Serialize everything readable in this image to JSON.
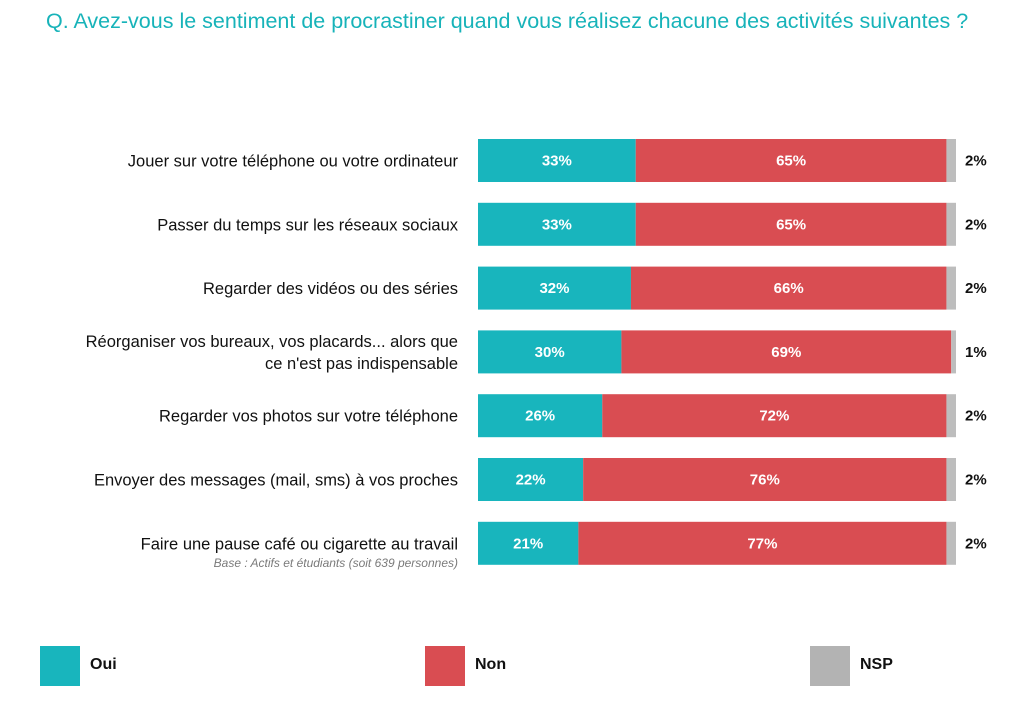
{
  "title": "Q. Avez-vous le sentiment de procrastiner quand vous réalisez chacune des activités suivantes ?",
  "base_note": "Base : Actifs et étudiants (soit 639 personnes)",
  "colors": {
    "oui": "#18b5bd",
    "non": "#d94d52",
    "nsp": "#bdbdbd",
    "title": "#17b3b9"
  },
  "legend": [
    {
      "label": "Oui",
      "color": "#18b5bd"
    },
    {
      "label": "Non",
      "color": "#d94d52"
    },
    {
      "label": "NSP",
      "color": "#b3b3b3"
    }
  ],
  "chart_data": {
    "type": "bar",
    "orientation": "horizontal",
    "stacked": true,
    "unit": "%",
    "categories": [
      [
        "Jouer sur votre téléphone ou votre ordinateur"
      ],
      [
        "Passer du temps sur les réseaux sociaux"
      ],
      [
        "Regarder des vidéos ou des séries"
      ],
      [
        "Réorganiser vos bureaux, vos placards... alors que",
        "ce n'est pas indispensable"
      ],
      [
        "Regarder vos photos sur votre téléphone"
      ],
      [
        "Envoyer des messages (mail, sms) à vos proches"
      ],
      [
        "Faire une pause café ou cigarette au travail"
      ]
    ],
    "series": [
      {
        "name": "Oui",
        "values": [
          33,
          33,
          32,
          30,
          26,
          22,
          21
        ],
        "labels": [
          "33%",
          "33%",
          "32%",
          "30%",
          "26%",
          "22%",
          "21%"
        ]
      },
      {
        "name": "Non",
        "values": [
          65,
          65,
          66,
          69,
          72,
          76,
          77
        ],
        "labels": [
          "65%",
          "65%",
          "66%",
          "69%",
          "72%",
          "76%",
          "77%"
        ]
      },
      {
        "name": "NSP",
        "values": [
          2,
          2,
          2,
          1,
          2,
          2,
          2
        ],
        "labels": [
          "2%",
          "2%",
          "2%",
          "1%",
          "2%",
          "2%",
          "2%"
        ]
      }
    ],
    "xlim": [
      0,
      100
    ],
    "grid": false,
    "legend_position": "bottom"
  }
}
